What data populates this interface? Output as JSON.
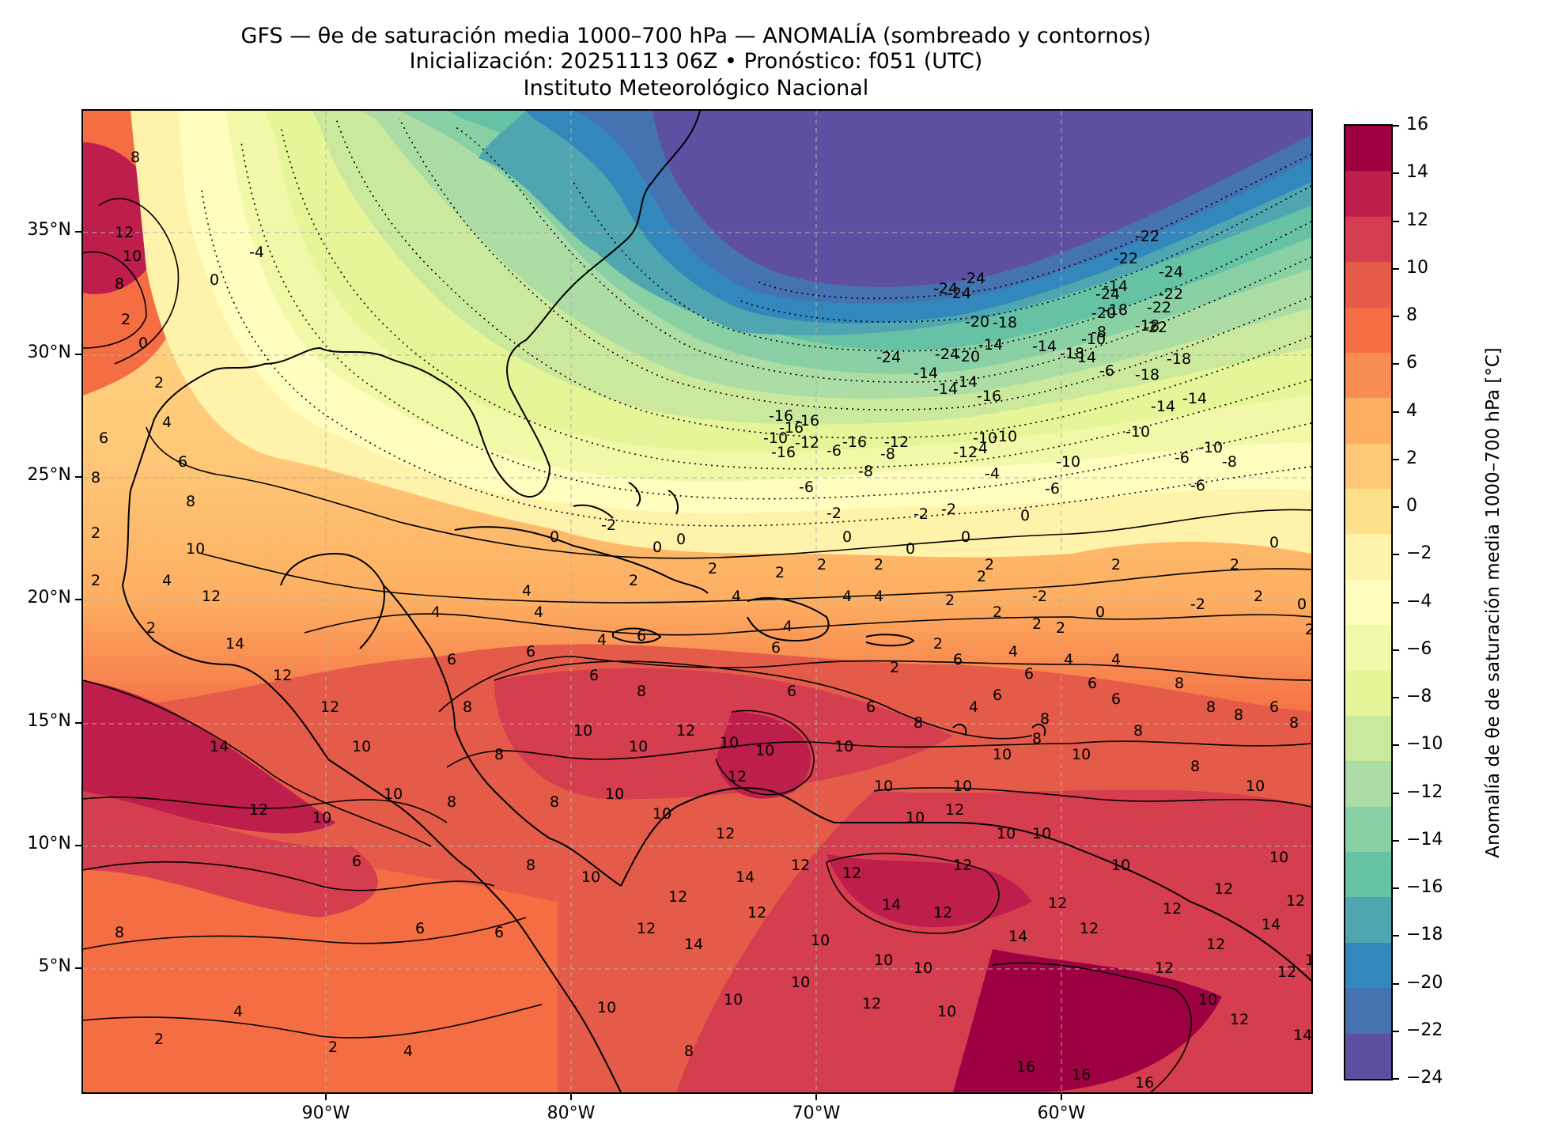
{
  "header": {
    "title_line1": "GFS — θe de saturación media 1000–700 hPa — ANOMALÍA (sombreado y contornos)",
    "title_line2": "Inicialización: 20251113 06Z   •   Pronóstico: f051 (UTC)",
    "title_line3": "Instituto Meteorológico Nacional"
  },
  "map": {
    "lat_ticks": [
      "35°N",
      "30°N",
      "25°N",
      "20°N",
      "15°N",
      "10°N",
      "5°N"
    ],
    "lon_ticks": [
      "90°W",
      "80°W",
      "70°W",
      "60°W"
    ],
    "contour_labels": [
      "-24",
      "-22",
      "-20",
      "-18",
      "-16",
      "-14",
      "-12",
      "-10",
      "-8",
      "-6",
      "-4",
      "-2",
      "0",
      "2",
      "4",
      "6",
      "8",
      "10",
      "12",
      "14",
      "16"
    ],
    "land_outline_color": "#000000",
    "gridline_color": "#b0b0b0"
  },
  "colorbar": {
    "title": "Anomalía de θe de saturación media 1000–700 hPa [°C]",
    "tick_labels": [
      "16",
      "14",
      "12",
      "10",
      "8",
      "6",
      "4",
      "2",
      "0",
      "−2",
      "−4",
      "−6",
      "−8",
      "−10",
      "−12",
      "−14",
      "−16",
      "−18",
      "−20",
      "−22",
      "−24"
    ],
    "segments_top_to_bottom": [
      "#9e0142",
      "#be1e4b",
      "#d53e4f",
      "#e45c49",
      "#f46d43",
      "#f88d52",
      "#fdae61",
      "#fec878",
      "#fee08b",
      "#fff2ab",
      "#fffebf",
      "#f1f9a9",
      "#e6f598",
      "#cbe99d",
      "#abdda4",
      "#89d0a4",
      "#66c2a5",
      "#4fa6b1",
      "#3288bd",
      "#4572b1",
      "#5e4fa2"
    ]
  }
}
